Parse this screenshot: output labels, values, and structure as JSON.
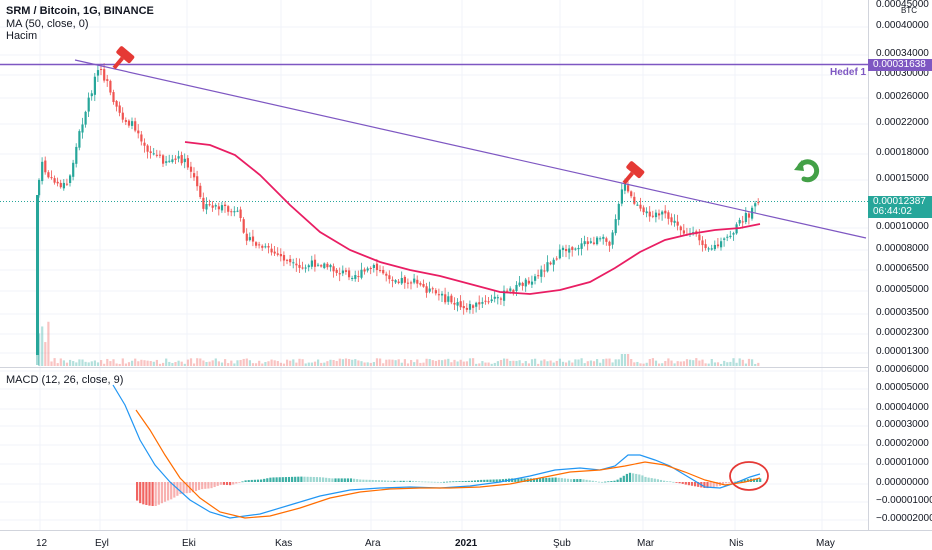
{
  "header": {
    "symbol_line": "SRM / Bitcoin, 1G, BINANCE",
    "ma_line": "MA (50, close, 0)",
    "volume_line": "Hacim",
    "macd_line": "MACD (12, 26, close, 9)"
  },
  "currency": "BTC",
  "price_axis": [
    "0.00045000",
    "0.00040000",
    "0.00034000",
    "0.00030000",
    "0.00026000",
    "0.00022000",
    "0.00018000",
    "0.00015000",
    "0.00010000",
    "0.00008000",
    "0.00006500",
    "0.00005000",
    "0.00003500",
    "0.00002300",
    "0.00001300"
  ],
  "price_tags": {
    "target_value": "0.00031638",
    "target_label": "Hedef 1",
    "current_value": "0.00012387",
    "countdown": "06:44:02"
  },
  "macd_axis": [
    "0.00006000",
    "0.00005000",
    "0.00004000",
    "0.00003000",
    "0.00002000",
    "0.00001000",
    "0.00000000",
    "−0.00001000",
    "−0.00002000"
  ],
  "time_axis": [
    "12",
    "Eyl",
    "Eki",
    "Kas",
    "Ara",
    "2021",
    "Şub",
    "Mar",
    "Nis",
    "May"
  ],
  "colors": {
    "up": "#26a69a",
    "down": "#ef5350",
    "ma": "#e91e63",
    "trendline": "#7e57c2",
    "target_line": "#7e57c2",
    "macd": "#2196f3",
    "signal": "#ff6d00",
    "current_tag": "#26a69a",
    "circle": "#e53935"
  },
  "icons": [
    "sell-hammer-icon",
    "sell-hammer-icon",
    "target-arrow-icon"
  ]
}
